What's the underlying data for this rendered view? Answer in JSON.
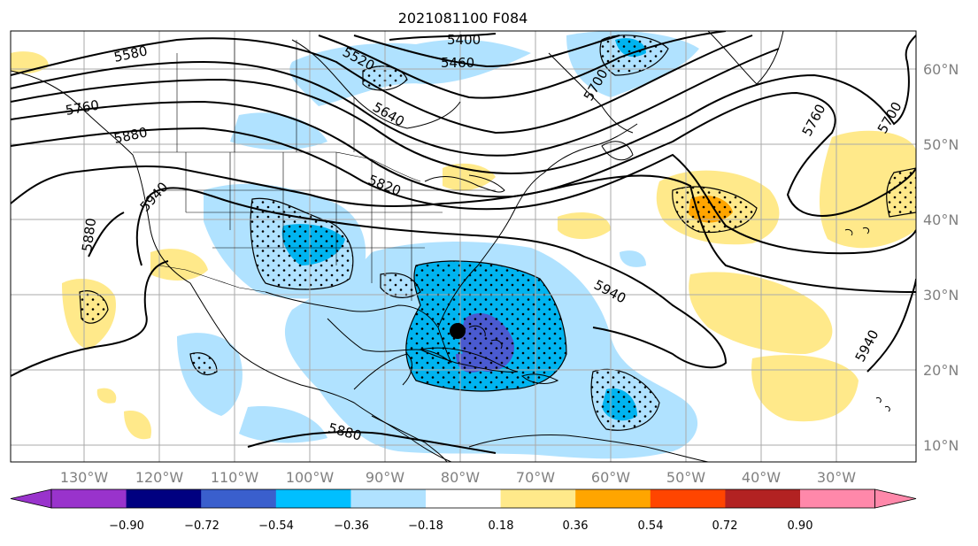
{
  "title": "2021081100 F084",
  "map": {
    "lon_labels": [
      "130°W",
      "120°W",
      "110°W",
      "100°W",
      "90°W",
      "80°W",
      "70°W",
      "60°W",
      "50°W",
      "40°W",
      "30°W"
    ],
    "lat_labels": [
      "60°N",
      "50°N",
      "40°N",
      "30°N",
      "20°N",
      "10°N"
    ],
    "contour_labels": [
      "5400",
      "5460",
      "5520",
      "5580",
      "5640",
      "5700",
      "5700",
      "5760",
      "5760",
      "5820",
      "5880",
      "5880",
      "5880",
      "5940",
      "5940",
      "5940"
    ],
    "storm_marker": "tropical-cyclone-center"
  },
  "colorbar": {
    "tick_labels": [
      "−0.90",
      "−0.72",
      "−0.54",
      "−0.36",
      "−0.18",
      "0.18",
      "0.36",
      "0.54",
      "0.72",
      "0.90"
    ],
    "colors": [
      "#9933cc",
      "#000080",
      "#3a5fcd",
      "#00bfff",
      "#b0e2ff",
      "#ffffff",
      "#ffe98a",
      "#ffa500",
      "#ff4500",
      "#b22222",
      "#ff88aa"
    ]
  },
  "colors": {
    "light_blue": "#b0e2ff",
    "blue": "#00b4f0",
    "dark_blue": "#4a5ad0",
    "yellow": "#ffe98a",
    "orange": "#ffa500",
    "contour": "#000000",
    "grid": "#aaaaaa",
    "axis_label": "#808080"
  }
}
